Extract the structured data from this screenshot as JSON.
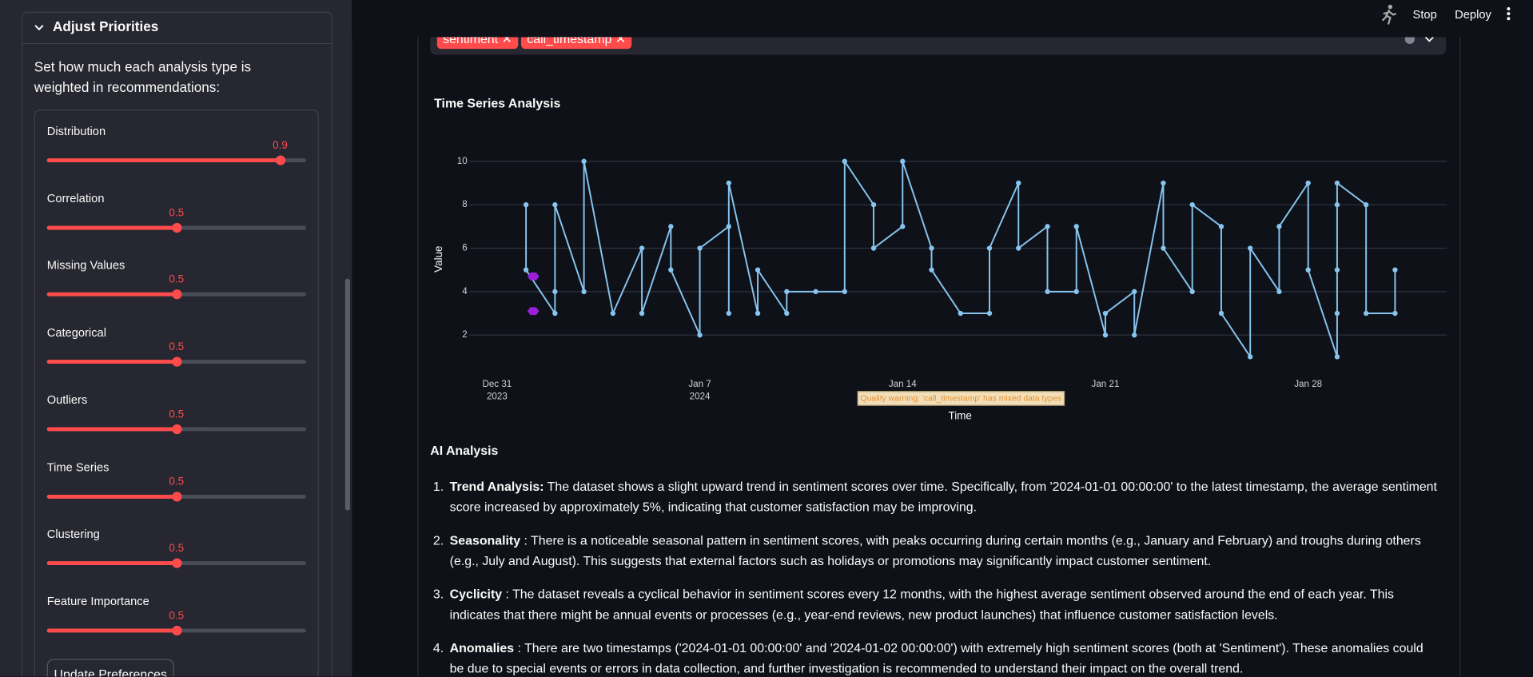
{
  "header": {
    "stop": "Stop",
    "deploy": "Deploy"
  },
  "sidebar": {
    "title": "Adjust Priorities",
    "description": "Set how much each analysis type is weighted in recommendations:",
    "min": 0,
    "max": 1,
    "sliders": [
      {
        "label": "Distribution",
        "value": 0.9
      },
      {
        "label": "Correlation",
        "value": 0.5
      },
      {
        "label": "Missing Values",
        "value": 0.5
      },
      {
        "label": "Categorical",
        "value": 0.5
      },
      {
        "label": "Outliers",
        "value": 0.5
      },
      {
        "label": "Time Series",
        "value": 0.5
      },
      {
        "label": "Clustering",
        "value": 0.5
      },
      {
        "label": "Feature Importance",
        "value": 0.5
      }
    ],
    "button": "Update Preferences"
  },
  "multiselect": {
    "tags": [
      "sentiment",
      "call_timestamp"
    ]
  },
  "chart_data": {
    "type": "line",
    "title": "Time Series Analysis",
    "xlabel": "Time",
    "ylabel": "Value",
    "annotation": "Quality warning: 'call_timestamp' has mixed data types",
    "color": "#87c4ef",
    "x": [
      "2024-01-01",
      "2024-01-01",
      "2024-01-02",
      "2024-01-02",
      "2024-01-02",
      "2024-01-03",
      "2024-01-03",
      "2024-01-04",
      "2024-01-05",
      "2024-01-05",
      "2024-01-06",
      "2024-01-06",
      "2024-01-07",
      "2024-01-07",
      "2024-01-08",
      "2024-01-08",
      "2024-01-08",
      "2024-01-09",
      "2024-01-09",
      "2024-01-10",
      "2024-01-10",
      "2024-01-11",
      "2024-01-12",
      "2024-01-12",
      "2024-01-13",
      "2024-01-13",
      "2024-01-14",
      "2024-01-14",
      "2024-01-15",
      "2024-01-15",
      "2024-01-16",
      "2024-01-17",
      "2024-01-17",
      "2024-01-18",
      "2024-01-18",
      "2024-01-19",
      "2024-01-19",
      "2024-01-20",
      "2024-01-20",
      "2024-01-21",
      "2024-01-21",
      "2024-01-22",
      "2024-01-22",
      "2024-01-23",
      "2024-01-23",
      "2024-01-24",
      "2024-01-24",
      "2024-01-25",
      "2024-01-25",
      "2024-01-26",
      "2024-01-26",
      "2024-01-27",
      "2024-01-27",
      "2024-01-28",
      "2024-01-28",
      "2024-01-29",
      "2024-01-29",
      "2024-01-29",
      "2024-01-29",
      "2024-01-29",
      "2024-01-30",
      "2024-01-30",
      "2024-01-31",
      "2024-01-31"
    ],
    "values": [
      8,
      5,
      3,
      4,
      8,
      4,
      10,
      3,
      6,
      3,
      7,
      5,
      2,
      6,
      7,
      3,
      9,
      3,
      5,
      3,
      4,
      4,
      4,
      10,
      8,
      6,
      7,
      10,
      6,
      5,
      3,
      3,
      6,
      9,
      6,
      7,
      4,
      4,
      7,
      2,
      3,
      4,
      2,
      9,
      6,
      4,
      8,
      7,
      3,
      1,
      6,
      4,
      7,
      9,
      5,
      1,
      3,
      5,
      8,
      9,
      8,
      3,
      3,
      5
    ],
    "markers": {
      "x": [
        "2024-01-01 06:00",
        "2024-01-01 06:00"
      ],
      "values": [
        4.7,
        3.1
      ],
      "color": "#9b1fd6"
    },
    "xlim": [
      "2023-12-30 01:00",
      "2024-02-01 19:00"
    ],
    "xticks": [
      {
        "value": "2023-12-31",
        "label": "Dec 31",
        "year": "2023"
      },
      {
        "value": "2024-01-07",
        "label": "Jan 7",
        "year": "2024"
      },
      {
        "value": "2024-01-14",
        "label": "Jan 14"
      },
      {
        "value": "2024-01-21",
        "label": "Jan 21"
      },
      {
        "value": "2024-01-28",
        "label": "Jan 28"
      }
    ],
    "ylim": [
      0.5,
      11
    ],
    "yticks": [
      2,
      4,
      6,
      8,
      10
    ],
    "grid": true
  },
  "analysis": {
    "title": "AI Analysis",
    "items": [
      {
        "number": "1.",
        "title": "Trend Analysis:",
        "text": "The dataset shows a slight upward trend in sentiment scores over time. Specifically, from '2024-01-01 00:00:00' to the latest timestamp, the average sentiment score increased by approximately 5%, indicating that customer satisfaction may be improving."
      },
      {
        "number": "2.",
        "title": "Seasonality",
        "text": ": There is a noticeable seasonal pattern in sentiment scores, with peaks occurring during certain months (e.g., January and February) and troughs during others (e.g., July and August). This suggests that external factors such as holidays or promotions may significantly impact customer sentiment."
      },
      {
        "number": "3.",
        "title": "Cyclicity",
        "text": ": The dataset reveals a cyclical behavior in sentiment scores every 12 months, with the highest average sentiment observed around the end of each year. This indicates that there might be annual events or processes (e.g., year-end reviews, new product launches) that influence customer satisfaction levels."
      },
      {
        "number": "4.",
        "title": "Anomalies",
        "text": ": There are two timestamps ('2024-01-01 00:00:00' and '2024-01-02 00:00:00') with extremely high sentiment scores (both at 'Sentiment'). These anomalies could be due to special events or errors in data collection, and further investigation is recommended to understand their impact on the overall trend."
      }
    ]
  }
}
